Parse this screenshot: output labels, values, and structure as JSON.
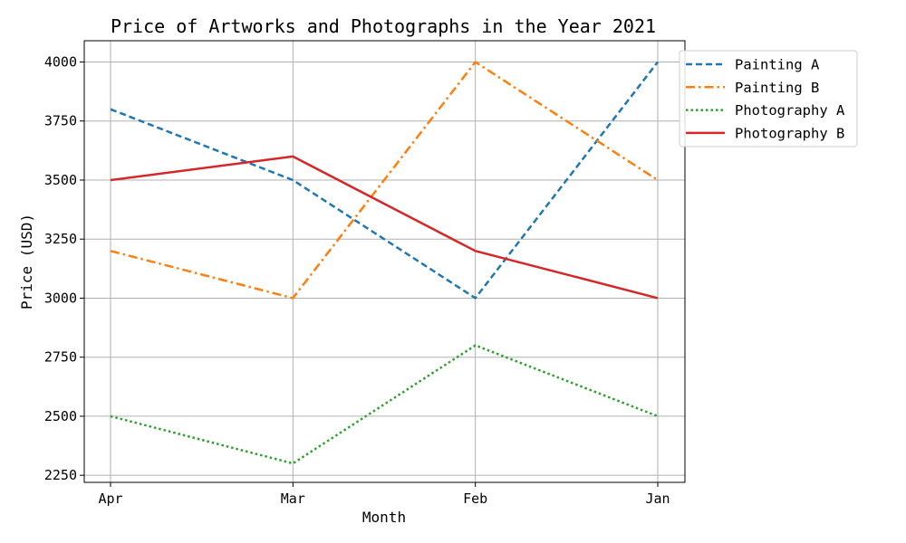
{
  "chart_data": {
    "type": "line",
    "title": "Price of Artworks and Photographs in the Year 2021",
    "xlabel": "Month",
    "ylabel": "Price (USD)",
    "categories": [
      "Apr",
      "Mar",
      "Feb",
      "Jan"
    ],
    "ylim": [
      2220,
      4090
    ],
    "yticks": [
      2250,
      2500,
      2750,
      3000,
      3250,
      3500,
      3750,
      4000
    ],
    "grid": true,
    "legend_position": "upper-right-outside",
    "series": [
      {
        "name": "Painting A",
        "values": [
          3800,
          3500,
          3000,
          4000
        ],
        "color": "#1f77b4",
        "style": "dashed"
      },
      {
        "name": "Painting B",
        "values": [
          3200,
          3000,
          4000,
          3500
        ],
        "color": "#ff7f0e",
        "style": "dashdot"
      },
      {
        "name": "Photography A",
        "values": [
          2500,
          2300,
          2800,
          2500
        ],
        "color": "#2ca02c",
        "style": "dotted"
      },
      {
        "name": "Photography B",
        "values": [
          3500,
          3600,
          3200,
          3000
        ],
        "color": "#d62728",
        "style": "solid"
      }
    ]
  }
}
